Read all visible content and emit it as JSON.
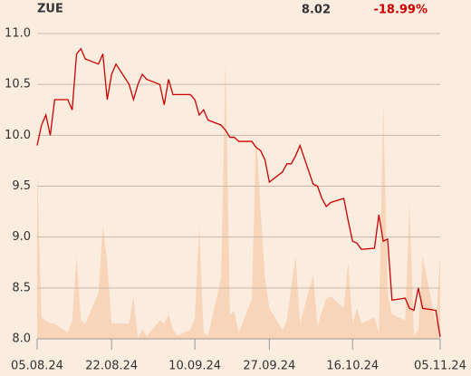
{
  "chart_data": {
    "type": "line",
    "symbol": "ZUE",
    "last_price": "8.02",
    "change": "-18.99%",
    "change_color": "#cc0000",
    "x": [
      "2024-08-05",
      "2024-08-06",
      "2024-08-07",
      "2024-08-08",
      "2024-08-09",
      "2024-08-12",
      "2024-08-13",
      "2024-08-14",
      "2024-08-15",
      "2024-08-16",
      "2024-08-19",
      "2024-08-20",
      "2024-08-21",
      "2024-08-22",
      "2024-08-23",
      "2024-08-26",
      "2024-08-27",
      "2024-08-28",
      "2024-08-29",
      "2024-08-30",
      "2024-09-02",
      "2024-09-03",
      "2024-09-04",
      "2024-09-05",
      "2024-09-06",
      "2024-09-09",
      "2024-09-10",
      "2024-09-11",
      "2024-09-12",
      "2024-09-13",
      "2024-09-16",
      "2024-09-17",
      "2024-09-18",
      "2024-09-19",
      "2024-09-20",
      "2024-09-23",
      "2024-09-24",
      "2024-09-25",
      "2024-09-26",
      "2024-09-27",
      "2024-09-30",
      "2024-10-01",
      "2024-10-02",
      "2024-10-03",
      "2024-10-04",
      "2024-10-07",
      "2024-10-08",
      "2024-10-09",
      "2024-10-10",
      "2024-10-11",
      "2024-10-14",
      "2024-10-15",
      "2024-10-16",
      "2024-10-17",
      "2024-10-18",
      "2024-10-21",
      "2024-10-22",
      "2024-10-23",
      "2024-10-24",
      "2024-10-25",
      "2024-10-28",
      "2024-10-29",
      "2024-10-30",
      "2024-10-31",
      "2024-11-01",
      "2024-11-04",
      "2024-11-05"
    ],
    "series": [
      {
        "name": "price",
        "color": "#cc0000",
        "values": [
          9.9,
          10.1,
          10.2,
          10.0,
          10.35,
          10.35,
          10.25,
          10.8,
          10.85,
          10.75,
          10.7,
          10.8,
          10.35,
          10.6,
          10.7,
          10.5,
          10.35,
          10.5,
          10.6,
          10.55,
          10.5,
          10.3,
          10.55,
          10.4,
          10.4,
          10.4,
          10.35,
          10.2,
          10.25,
          10.15,
          10.1,
          10.05,
          9.98,
          9.98,
          9.94,
          9.94,
          9.88,
          9.85,
          9.76,
          9.54,
          9.64,
          9.72,
          9.72,
          9.8,
          9.9,
          9.52,
          9.5,
          9.38,
          9.3,
          9.34,
          9.38,
          9.16,
          8.96,
          8.94,
          8.88,
          8.89,
          9.22,
          8.96,
          8.98,
          8.38,
          8.4,
          8.3,
          8.28,
          8.5,
          8.3,
          8.28,
          8.02
        ]
      },
      {
        "name": "volume",
        "color": "#f8d5b8",
        "axis": "volume",
        "values": [
          55,
          7,
          6,
          5,
          5,
          2,
          6,
          27,
          6,
          5,
          15,
          37,
          25,
          5,
          5,
          5,
          14,
          0,
          3,
          1,
          6,
          5,
          8,
          3,
          1,
          3,
          7,
          37,
          2,
          1,
          20,
          92,
          8,
          9,
          2,
          13,
          67,
          42,
          20,
          10,
          3,
          6,
          17,
          27,
          5,
          21,
          4,
          9,
          13,
          14,
          10,
          25,
          5,
          10,
          5,
          7,
          2,
          77,
          15,
          8,
          6,
          44,
          1,
          3,
          27,
          5,
          27
        ]
      }
    ],
    "volume_lim": [
      0,
      100
    ],
    "xlim": [
      "2024-08-05",
      "2024-11-05"
    ],
    "xticks": [
      {
        "value": "2024-08-05",
        "label": "05.08.24"
      },
      {
        "value": "2024-08-22",
        "label": "22.08.24"
      },
      {
        "value": "2024-09-10",
        "label": "10.09.24"
      },
      {
        "value": "2024-09-27",
        "label": "27.09.24"
      },
      {
        "value": "2024-10-16",
        "label": "16.10.24"
      },
      {
        "value": "2024-11-05",
        "label": "05.11.24"
      }
    ],
    "ylim": [
      8.0,
      11.0
    ],
    "yticks": [
      {
        "value": 8,
        "label": "8.0"
      },
      8.5,
      {
        "value": 9,
        "label": "9.0"
      },
      9.5,
      {
        "value": 10,
        "label": "10.0"
      },
      10.5,
      {
        "value": 11,
        "label": "11.0"
      }
    ],
    "grid": true
  }
}
